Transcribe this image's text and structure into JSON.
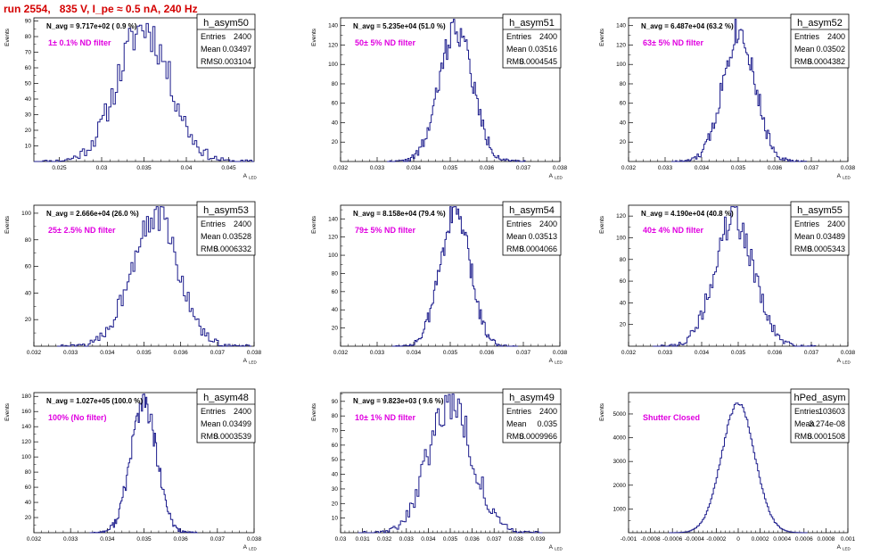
{
  "run_title": "run 2554,   835 V, I_pe ≈ 0.5 nA, 240 Hz",
  "colors": {
    "histogram": "#1c1c8c",
    "filter_label": "#e000e0",
    "title": "#d40000",
    "axes": "#000000"
  },
  "stats_labels": {
    "entries": "Entries",
    "mean": "Mean",
    "rms": "RMS"
  },
  "ylabel": "Events",
  "xlabel_main": "A",
  "xlabel_sub": "LED",
  "chart_data": [
    {
      "type": "histogram",
      "name": "h_asym50",
      "nlabel": "N_avg = 9.717e+02 ( 0.9 %)",
      "filter": "1± 0.1% ND filter",
      "entries": "2400",
      "mean_text": "0.03497",
      "rms_text": "0.003104",
      "xlim": [
        0.022,
        0.048
      ],
      "ylim": [
        0,
        92
      ],
      "xticks": [
        0.025,
        0.03,
        0.035,
        0.04,
        0.045
      ],
      "xticklabels": [
        "0.025",
        "0.03",
        "0.035",
        "0.04",
        "0.045"
      ],
      "yticks": [
        10,
        20,
        30,
        40,
        50,
        60,
        70,
        80,
        90
      ],
      "yticklabels": [
        "10",
        "20",
        "30",
        "40",
        "50",
        "60",
        "70",
        "80",
        "90"
      ],
      "mean": 0.03497,
      "sigma": 0.0031,
      "peak": 86,
      "tail": 0.002,
      "seed": 11
    },
    {
      "type": "histogram",
      "name": "h_asym51",
      "nlabel": "N_avg = 5.235e+04 (51.0 %)",
      "filter": "50± 5% ND filter",
      "entries": "2400",
      "mean_text": "0.03516",
      "rms_text": "0.0004545",
      "xlim": [
        0.032,
        0.038
      ],
      "ylim": [
        0,
        148
      ],
      "xticks": [
        0.032,
        0.033,
        0.034,
        0.035,
        0.036,
        0.037,
        0.038
      ],
      "xticklabels": [
        "0.032",
        "0.033",
        "0.034",
        "0.035",
        "0.036",
        "0.037",
        "0.038"
      ],
      "yticks": [
        20,
        40,
        60,
        80,
        100,
        120,
        140
      ],
      "yticklabels": [
        "20",
        "40",
        "60",
        "80",
        "100",
        "120",
        "140"
      ],
      "mean": 0.03516,
      "sigma": 0.00045,
      "peak": 138,
      "tail": 0.0003,
      "seed": 22
    },
    {
      "type": "histogram",
      "name": "h_asym52",
      "nlabel": "N_avg = 6.487e+04 (63.2 %)",
      "filter": "63± 5% ND filter",
      "entries": "2400",
      "mean_text": "0.03502",
      "rms_text": "0.0004382",
      "xlim": [
        0.032,
        0.038
      ],
      "ylim": [
        0,
        148
      ],
      "xticks": [
        0.032,
        0.033,
        0.034,
        0.035,
        0.036,
        0.037,
        0.038
      ],
      "xticklabels": [
        "0.032",
        "0.033",
        "0.034",
        "0.035",
        "0.036",
        "0.037",
        "0.038"
      ],
      "yticks": [
        20,
        40,
        60,
        80,
        100,
        120,
        140
      ],
      "yticklabels": [
        "20",
        "40",
        "60",
        "80",
        "100",
        "120",
        "140"
      ],
      "mean": 0.03502,
      "sigma": 0.00044,
      "peak": 136,
      "tail": 0.0003,
      "seed": 33
    },
    {
      "type": "histogram",
      "name": "h_asym53",
      "nlabel": "N_avg = 2.666e+04 (26.0 %)",
      "filter": "25± 2.5% ND filter",
      "entries": "2400",
      "mean_text": "0.03528",
      "rms_text": "0.0006332",
      "xlim": [
        0.032,
        0.038
      ],
      "ylim": [
        0,
        106
      ],
      "xticks": [
        0.032,
        0.033,
        0.034,
        0.035,
        0.036,
        0.037,
        0.038
      ],
      "xticklabels": [
        "0.032",
        "0.033",
        "0.034",
        "0.035",
        "0.036",
        "0.037",
        "0.038"
      ],
      "yticks": [
        20,
        40,
        60,
        80,
        100
      ],
      "yticklabels": [
        "20",
        "40",
        "60",
        "80",
        "100"
      ],
      "mean": 0.03528,
      "sigma": 0.00063,
      "peak": 100,
      "tail": 0.0004,
      "seed": 44
    },
    {
      "type": "histogram",
      "name": "h_asym54",
      "nlabel": "N_avg = 8.158e+04 (79.4 %)",
      "filter": "79± 5% ND filter",
      "entries": "2400",
      "mean_text": "0.03513",
      "rms_text": "0.0004066",
      "xlim": [
        0.032,
        0.038
      ],
      "ylim": [
        0,
        155
      ],
      "xticks": [
        0.032,
        0.033,
        0.034,
        0.035,
        0.036,
        0.037,
        0.038
      ],
      "xticklabels": [
        "0.032",
        "0.033",
        "0.034",
        "0.035",
        "0.036",
        "0.037",
        "0.038"
      ],
      "yticks": [
        20,
        40,
        60,
        80,
        100,
        120,
        140
      ],
      "yticklabels": [
        "20",
        "40",
        "60",
        "80",
        "100",
        "120",
        "140"
      ],
      "mean": 0.03513,
      "sigma": 0.00041,
      "peak": 148,
      "tail": 0.0003,
      "seed": 55
    },
    {
      "type": "histogram",
      "name": "h_asym55",
      "nlabel": "N_avg = 4.190e+04 (40.8 %)",
      "filter": "40± 4% ND filter",
      "entries": "2400",
      "mean_text": "0.03489",
      "rms_text": "0.0005343",
      "xlim": [
        0.032,
        0.038
      ],
      "ylim": [
        0,
        130
      ],
      "xticks": [
        0.032,
        0.033,
        0.034,
        0.035,
        0.036,
        0.037,
        0.038
      ],
      "xticklabels": [
        "0.032",
        "0.033",
        "0.034",
        "0.035",
        "0.036",
        "0.037",
        "0.038"
      ],
      "yticks": [
        20,
        40,
        60,
        80,
        100,
        120
      ],
      "yticklabels": [
        "20",
        "40",
        "60",
        "80",
        "100",
        "120"
      ],
      "mean": 0.03489,
      "sigma": 0.00053,
      "peak": 118,
      "tail": 0.0003,
      "seed": 66
    },
    {
      "type": "histogram",
      "name": "h_asym48",
      "nlabel": "N_avg = 1.027e+05 (100.0 %)",
      "filter": "100% (No filter)",
      "entries": "2400",
      "mean_text": "0.03499",
      "rms_text": "0.0003539",
      "xlim": [
        0.032,
        0.038
      ],
      "ylim": [
        0,
        185
      ],
      "xticks": [
        0.032,
        0.033,
        0.034,
        0.035,
        0.036,
        0.037,
        0.038
      ],
      "xticklabels": [
        "0.032",
        "0.033",
        "0.034",
        "0.035",
        "0.036",
        "0.037",
        "0.038"
      ],
      "yticks": [
        20,
        40,
        60,
        80,
        100,
        120,
        140,
        160,
        180
      ],
      "yticklabels": [
        "20",
        "40",
        "60",
        "80",
        "100",
        "120",
        "140",
        "160",
        "180"
      ],
      "mean": 0.03499,
      "sigma": 0.00035,
      "peak": 172,
      "tail": 0.0002,
      "seed": 77
    },
    {
      "type": "histogram",
      "name": "h_asym49",
      "nlabel": "N_avg = 9.823e+03 ( 9.6 %)",
      "filter": "10± 1% ND filter",
      "entries": "2400",
      "mean_text": "0.035",
      "rms_text": "0.0009966",
      "xlim": [
        0.03,
        0.04
      ],
      "ylim": [
        0,
        96
      ],
      "xticks": [
        0.03,
        0.031,
        0.032,
        0.033,
        0.034,
        0.035,
        0.036,
        0.037,
        0.038,
        0.039
      ],
      "xticklabels": [
        "0.03",
        "0.031",
        "0.032",
        "0.033",
        "0.034",
        "0.035",
        "0.036",
        "0.037",
        "0.038",
        "0.039"
      ],
      "yticks": [
        10,
        20,
        30,
        40,
        50,
        60,
        70,
        80,
        90
      ],
      "yticklabels": [
        "10",
        "20",
        "30",
        "40",
        "50",
        "60",
        "70",
        "80",
        "90"
      ],
      "mean": 0.035,
      "sigma": 0.001,
      "peak": 90,
      "tail": 0.0006,
      "seed": 88
    },
    {
      "type": "histogram",
      "name": "hPed_asym",
      "nlabel": "",
      "filter": "Shutter Closed",
      "entries": "103603",
      "mean_text": "3.274e-08",
      "rms_text": "0.0001508",
      "xlim": [
        -0.001,
        0.001
      ],
      "ylim": [
        0,
        5900
      ],
      "xticks": [
        -0.001,
        -0.0008,
        -0.0006,
        -0.0004,
        -0.0002,
        0,
        0.0002,
        0.0004,
        0.0006,
        0.0008,
        0.001
      ],
      "xticklabels": [
        "-0.001",
        "-0.0008",
        "-0.0006",
        "-0.0004",
        "-0.0002",
        "0",
        "0.0002",
        "0.0004",
        "0.0006",
        "0.0008",
        "0.001"
      ],
      "yticks": [
        1000,
        2000,
        3000,
        4000,
        5000
      ],
      "yticklabels": [
        "1000",
        "2000",
        "3000",
        "4000",
        "5000"
      ],
      "mean": 0.0,
      "sigma": 0.00015,
      "peak": 5450,
      "tail": 0.0001,
      "seed": 99
    }
  ]
}
